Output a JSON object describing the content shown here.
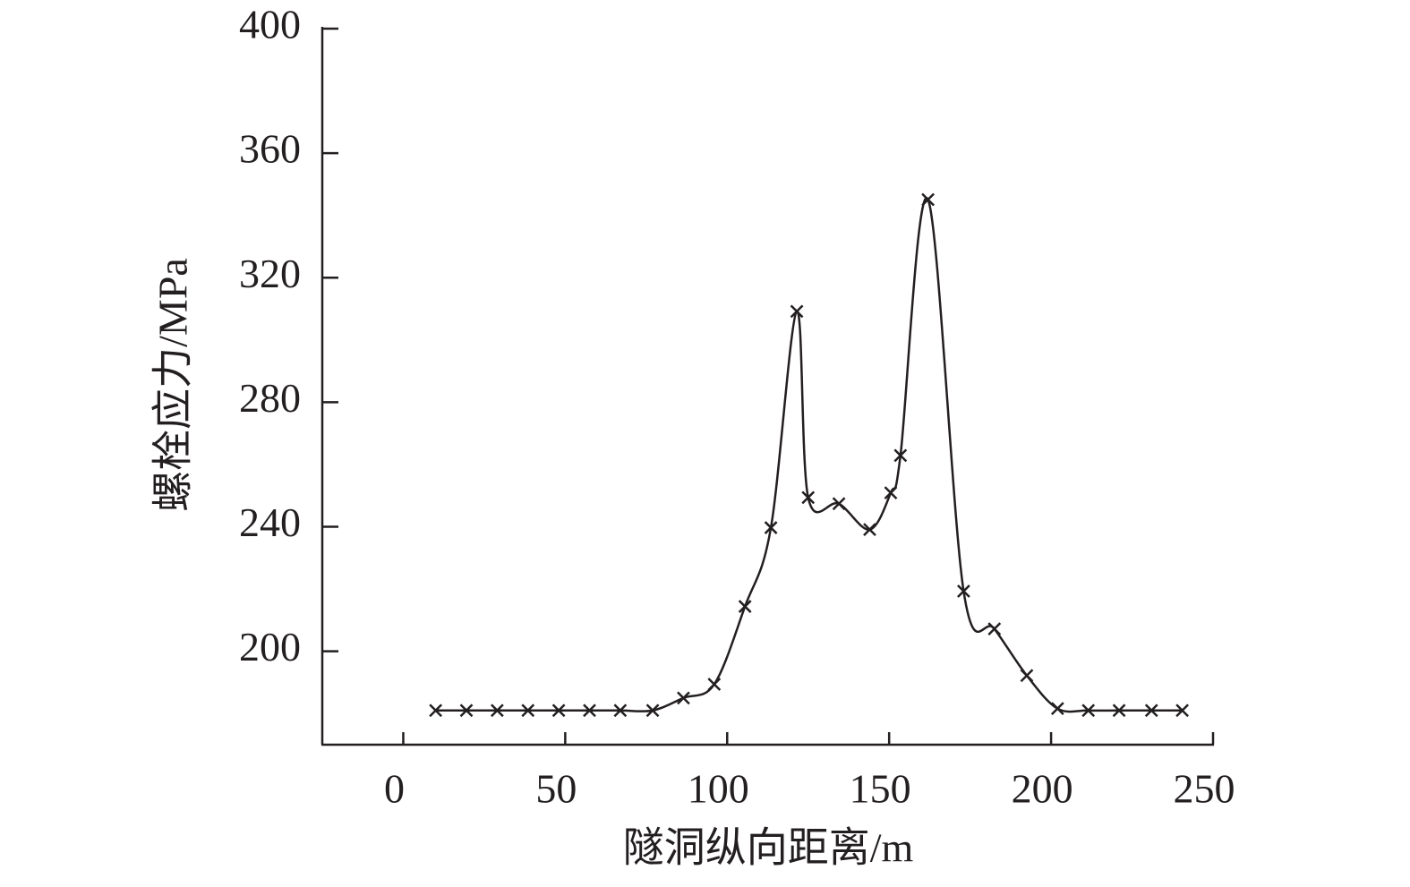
{
  "chart_data": {
    "type": "line",
    "x_label": "隧洞纵向距离/m",
    "y_label": "螺栓应力/MPa",
    "series": [
      {
        "name": "螺栓应力",
        "color": "#231f20",
        "marker": "x",
        "x": [
          10,
          19.5,
          29,
          38.5,
          48,
          57.5,
          67,
          77,
          86.5,
          96,
          105.5,
          113.5,
          121.5,
          125,
          134.5,
          144,
          150.5,
          153.5,
          162,
          173,
          182.5,
          192.5,
          202,
          211.5,
          221,
          231,
          240.5
        ],
        "values": [
          181,
          181,
          181,
          181,
          181,
          181,
          181,
          181,
          185,
          189.4,
          214.4,
          239.7,
          309.2,
          249.4,
          247.4,
          239.1,
          250.9,
          262.9,
          345.1,
          219.3,
          207.2,
          192.2,
          181.6,
          181,
          181,
          181,
          181
        ]
      }
    ],
    "xlim": [
      -25,
      250
    ],
    "xticks": [
      0,
      50,
      100,
      150,
      200,
      250
    ],
    "ylim": [
      170,
      400
    ],
    "yticks": [
      200,
      240,
      280,
      320,
      360,
      400
    ],
    "smooth": true,
    "grid": false
  }
}
